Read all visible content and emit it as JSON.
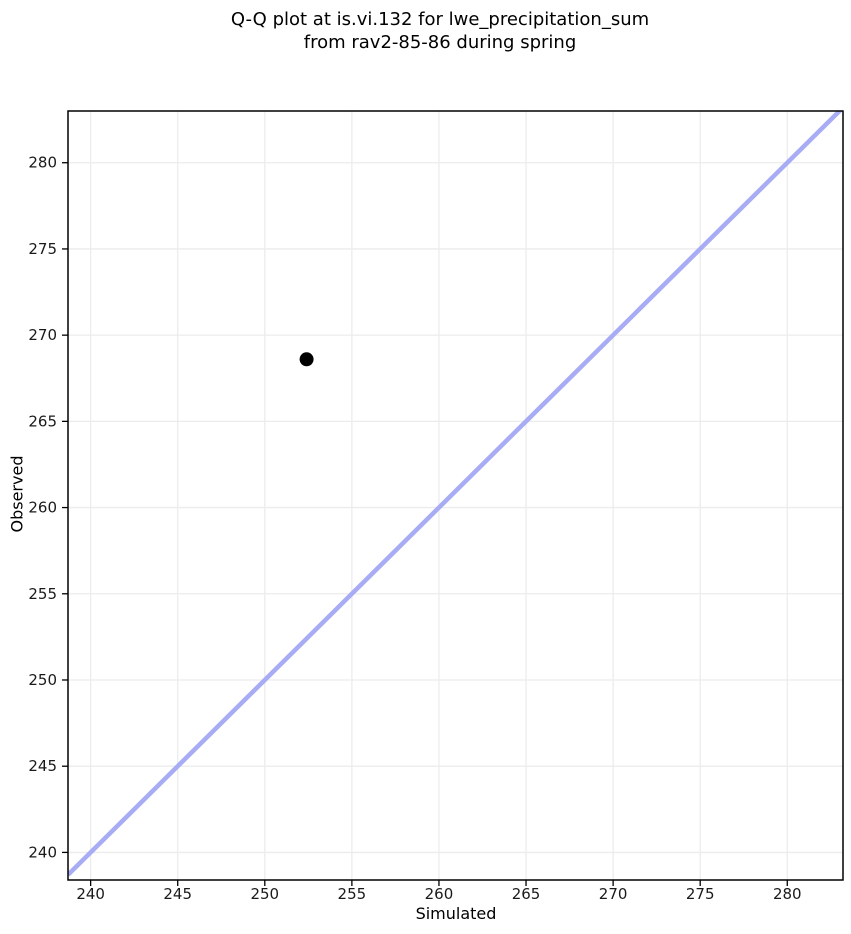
{
  "figure": {
    "title_line1": "Q-Q plot at is.vi.132 for lwe_precipitation_sum",
    "title_line2": "from rav2-85-86 during spring"
  },
  "chart_data": {
    "type": "scatter",
    "title": "Q-Q plot at is.vi.132 for lwe_precipitation_sum\nfrom rav2-85-86 during spring",
    "xlabel": "Simulated",
    "ylabel": "Observed",
    "xlim": [
      238.7,
      283.2
    ],
    "ylim": [
      238.4,
      283.0
    ],
    "x_ticks": [
      240,
      245,
      250,
      255,
      260,
      265,
      270,
      275,
      280
    ],
    "y_ticks": [
      240,
      245,
      250,
      255,
      260,
      265,
      270,
      275,
      280
    ],
    "grid": true,
    "legend": "none",
    "series": [
      {
        "name": "identity-line",
        "kind": "line",
        "points": [
          [
            238.7,
            238.7
          ],
          [
            283.2,
            283.2
          ]
        ],
        "color": "#a8acf4",
        "stroke_width": 4.5
      },
      {
        "name": "qq-points",
        "kind": "scatter",
        "points": [
          [
            252.4,
            268.6
          ]
        ],
        "color": "#000000",
        "radius": 7
      }
    ],
    "colors": {
      "background": "#ffffff",
      "grid": "#ececec",
      "spine": "#000000",
      "tick_text": "#1a1a1a"
    }
  }
}
